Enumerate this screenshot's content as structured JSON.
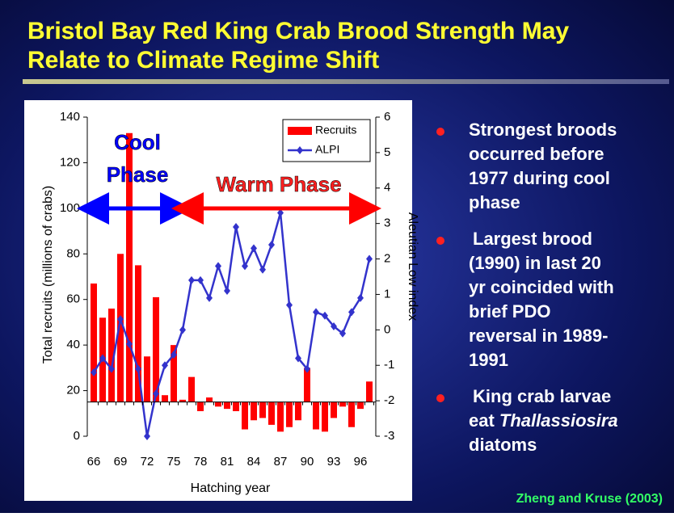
{
  "slide": {
    "title": [
      "Bristol Bay Red King Crab Brood Strength May",
      "Relate to Climate Regime Shift"
    ],
    "bullets": [
      {
        "lines": [
          "Strongest broods",
          "occurred before",
          "1977 during cool",
          "phase"
        ]
      },
      {
        "lines": [
          "Largest brood",
          "(1990) in last 20",
          "yr coincided with",
          "brief PDO",
          "reversal in 1989-",
          "1991"
        ]
      },
      {
        "lines": [
          "King crab larvae",
          "eat ",
          "Thallassiosira",
          "diatoms"
        ]
      }
    ],
    "citation": "Zheng and Kruse (2003)"
  },
  "chart_data": {
    "type": "bar_line",
    "x_label": "Hatching year",
    "y_label": "Total recruits (millions of crabs)",
    "y2_label": "Aleutian Low index",
    "annotations": [
      "Cool",
      "Phase",
      "Warm Phase"
    ],
    "categories": [
      "66",
      null,
      null,
      "69",
      null,
      null,
      "72",
      null,
      null,
      "75",
      null,
      null,
      "78",
      null,
      null,
      "81",
      null,
      null,
      "84",
      null,
      null,
      "87",
      null,
      null,
      "90",
      null,
      null,
      "93",
      null,
      null,
      "96",
      null
    ],
    "bar_baseline": 15,
    "series": [
      {
        "name": "Recruits",
        "color": "#ff0000",
        "type": "bar",
        "values": [
          67,
          52,
          56,
          80,
          133,
          75,
          35,
          61,
          18,
          40,
          16,
          26,
          11,
          17,
          13,
          12,
          11,
          3,
          7,
          8,
          5,
          2,
          4,
          7,
          30,
          3,
          2,
          8,
          13,
          4,
          12,
          24
        ]
      },
      {
        "name": "ALPI",
        "color": "#3333cc",
        "type": "line",
        "axis": "y2",
        "values": [
          -1.2,
          -0.8,
          -1.1,
          0.3,
          -0.4,
          -1.1,
          -3.0,
          -1.8,
          -1.0,
          -0.7,
          0.0,
          1.4,
          1.4,
          0.9,
          1.8,
          1.1,
          2.9,
          1.8,
          2.3,
          1.7,
          2.4,
          3.3,
          0.7,
          -0.8,
          -1.1,
          0.5,
          0.4,
          0.1,
          -0.1,
          0.5,
          0.9,
          2.0
        ]
      }
    ],
    "ylim": [
      0,
      140
    ],
    "yticks": [
      0,
      20,
      40,
      60,
      80,
      100,
      120,
      140
    ],
    "y2lim": [
      -3,
      6
    ],
    "y2ticks": [
      -3,
      -2,
      -1,
      0,
      1,
      2,
      3,
      4,
      5,
      6
    ],
    "legend": "upper right"
  }
}
